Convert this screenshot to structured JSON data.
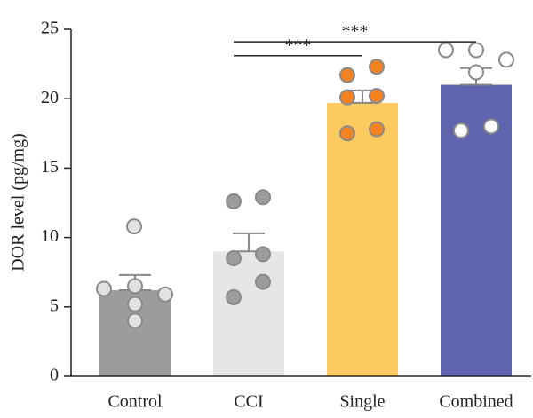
{
  "chart_data": {
    "type": "bar",
    "y_label": "DOR level (pg/mg)",
    "categories": [
      "Control",
      "CCI",
      "Single",
      "Combined"
    ],
    "values": [
      6.2,
      9.0,
      19.7,
      21.0
    ],
    "errors": [
      1.1,
      1.3,
      0.9,
      1.2
    ],
    "colors": [
      "#9c9c9c",
      "#e6e6e6",
      "#fdca60",
      "#5f64ae"
    ],
    "point_colors": [
      "#e2e2e2",
      "#9c9c9c",
      "#f58220",
      "#ffffff"
    ],
    "points": [
      [
        10.8,
        6.3,
        6.5,
        5.9,
        5.2,
        4.0
      ],
      [
        12.6,
        12.9,
        8.5,
        8.8,
        6.8,
        5.7
      ],
      [
        21.7,
        22.3,
        20.1,
        20.2,
        17.5,
        17.8
      ],
      [
        23.5,
        23.5,
        21.9,
        22.8,
        17.7,
        18.0
      ]
    ],
    "ylim": [
      0,
      25
    ],
    "yticks": [
      0,
      5,
      10,
      15,
      20,
      25
    ],
    "annotations": [
      {
        "text": "***",
        "from": 1,
        "to": 3,
        "y": 24.1
      },
      {
        "text": "***",
        "from": 1,
        "to": 2,
        "y": 23.1
      }
    ]
  }
}
